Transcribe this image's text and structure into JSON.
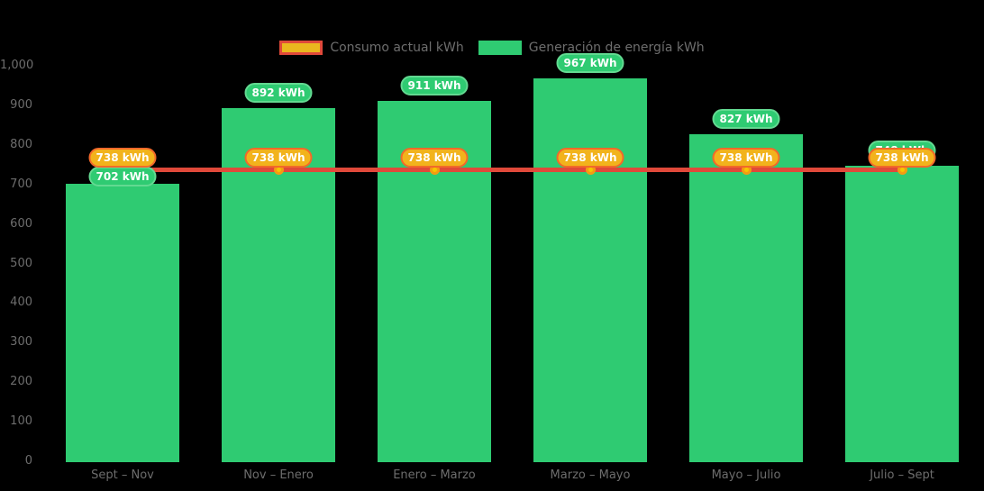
{
  "chart_data": {
    "type": "bar",
    "title": "",
    "xlabel": "",
    "ylabel": "",
    "categories": [
      "Sept – Nov",
      "Nov – Enero",
      "Enero – Marzo",
      "Marzo – Mayo",
      "Mayo – Julio",
      "Julio – Sept"
    ],
    "series": [
      {
        "name": "Generación de energía kWh",
        "type": "bar",
        "values": [
          702,
          892,
          911,
          967,
          827,
          748
        ],
        "label_suffix": " kWh"
      },
      {
        "name": "Consumo actual kWh",
        "type": "line",
        "values": [
          738,
          738,
          738,
          738,
          738,
          738
        ],
        "label_suffix": " kWh"
      }
    ],
    "ylim": [
      0,
      1000
    ],
    "y_ticks": [
      {
        "value": 0,
        "label": "0"
      },
      {
        "value": 100,
        "label": "100"
      },
      {
        "value": 200,
        "label": "200"
      },
      {
        "value": 300,
        "label": "300"
      },
      {
        "value": 400,
        "label": "400"
      },
      {
        "value": 500,
        "label": "500"
      },
      {
        "value": 600,
        "label": "600"
      },
      {
        "value": 700,
        "label": "700"
      },
      {
        "value": 800,
        "label": "800"
      },
      {
        "value": 900,
        "label": "900"
      },
      {
        "value": 1000,
        "label": "1,000"
      }
    ],
    "grid": false,
    "legend_position": "top-center"
  },
  "legend": {
    "items": [
      {
        "label": "Consumo actual kWh",
        "swatch_fill": "#eab71e",
        "swatch_border": "#e0493a"
      },
      {
        "label": "Generación de energía kWh",
        "swatch_fill": "#2fcb72",
        "swatch_border": "#2fcb72"
      }
    ]
  },
  "colors": {
    "background": "#000000",
    "bar_fill": "#2fcb72",
    "line": "#e0493a",
    "dot_fill": "#f7c600",
    "dot_ring": "#f39c12",
    "generation_pill_fill": "#2fcb72",
    "generation_pill_border": "#63d991",
    "consumption_pill_fill": "#f2b31c",
    "consumption_pill_border": "#f2692a",
    "pill_text": "#ffffff",
    "axis_text": "#6d6d6d"
  }
}
